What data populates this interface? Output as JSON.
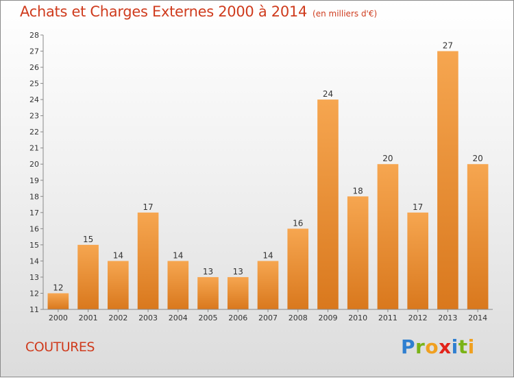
{
  "title": "Achats et Charges Externes 2000 à 2014",
  "unit": "(en milliers d'€)",
  "city": "COUTURES",
  "logo": {
    "letters": [
      "P",
      "r",
      "o",
      "x",
      "i",
      "t",
      "i"
    ],
    "colors": [
      "#2f7fd0",
      "#7ab317",
      "#f0a020",
      "#e2231a",
      "#2f7fd0",
      "#7ab317",
      "#f0a020"
    ]
  },
  "colors": {
    "bar_top": "#f6a650",
    "bar_bottom": "#d9781d",
    "title": "#cf3b1d"
  },
  "chart_data": {
    "type": "bar",
    "categories": [
      "2000",
      "2001",
      "2002",
      "2003",
      "2004",
      "2005",
      "2006",
      "2007",
      "2008",
      "2009",
      "2010",
      "2011",
      "2012",
      "2013",
      "2014"
    ],
    "values": [
      12,
      15,
      14,
      17,
      14,
      13,
      13,
      14,
      16,
      24,
      18,
      20,
      17,
      27,
      20
    ],
    "title": "Achats et Charges Externes 2000 à 2014",
    "xlabel": "",
    "ylabel": "",
    "ylim": [
      11,
      28
    ],
    "yticks": [
      11,
      12,
      13,
      14,
      15,
      16,
      17,
      18,
      19,
      20,
      21,
      22,
      23,
      24,
      25,
      26,
      27,
      28
    ],
    "grid": false,
    "legend": "none"
  }
}
